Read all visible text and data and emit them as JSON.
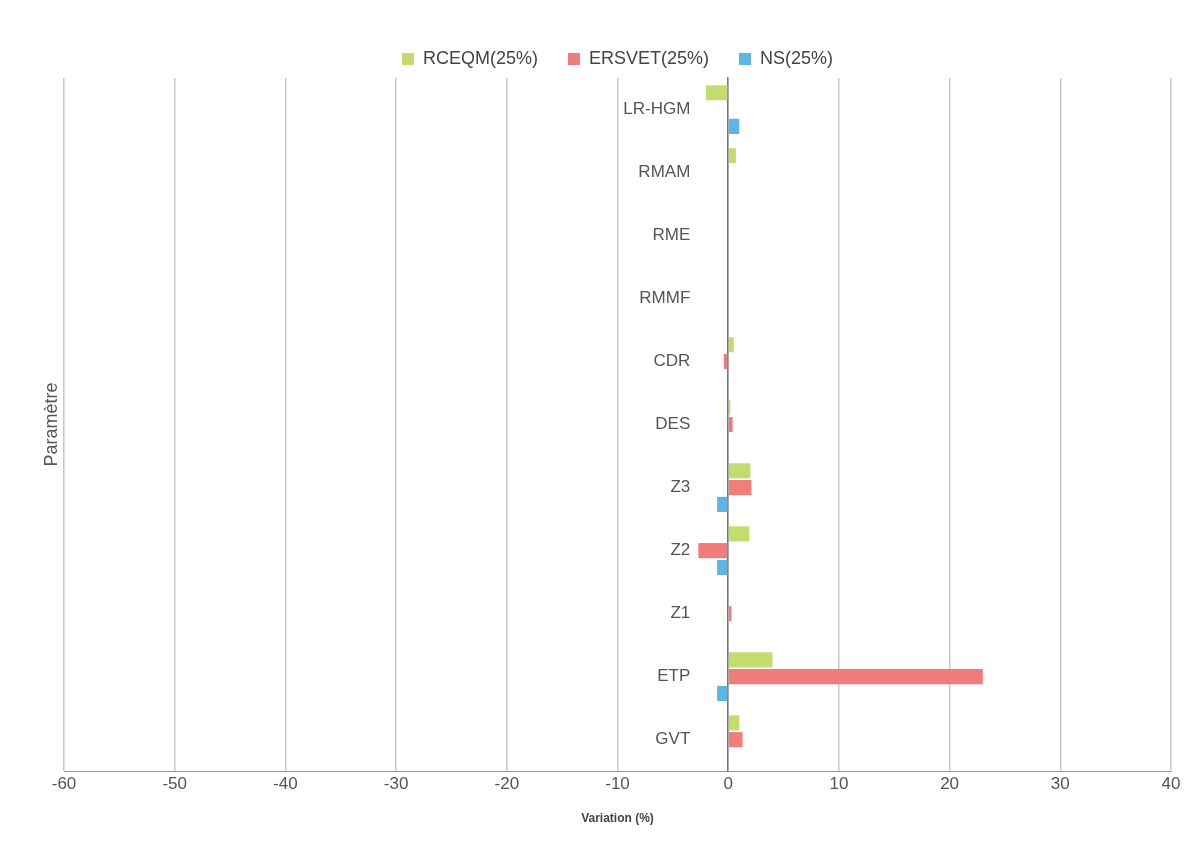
{
  "chart_data": {
    "type": "bar",
    "orientation": "horizontal",
    "xlabel": "Variation (%)",
    "ylabel": "Paramètre",
    "categories": [
      "LR-HGM",
      "RMAM",
      "RME",
      "RMMF",
      "CDR",
      "DES",
      "Z3",
      "Z2",
      "Z1",
      "ETP",
      "GVT"
    ],
    "series": [
      {
        "name": "RCEQM(25%)",
        "color": "#c3dc6e",
        "values": [
          -2,
          0.7,
          0,
          0,
          0.5,
          0.2,
          2,
          1.9,
          0,
          4,
          1
        ]
      },
      {
        "name": "ERSVET(25%)",
        "color": "#f07c7c",
        "values": [
          0,
          0,
          0,
          0,
          -0.4,
          0.4,
          2.1,
          -2.7,
          0.3,
          23,
          1.3
        ]
      },
      {
        "name": "NS(25%)",
        "color": "#5db6e2",
        "values": [
          1,
          0,
          0,
          0,
          0,
          0,
          -1,
          -1,
          0,
          -1,
          0
        ]
      }
    ],
    "xlim": [
      -60,
      40
    ],
    "xticks": [
      -60,
      -50,
      -40,
      -30,
      -20,
      -10,
      0,
      10,
      20,
      30,
      40
    ],
    "grid": "x",
    "legend": "top"
  }
}
